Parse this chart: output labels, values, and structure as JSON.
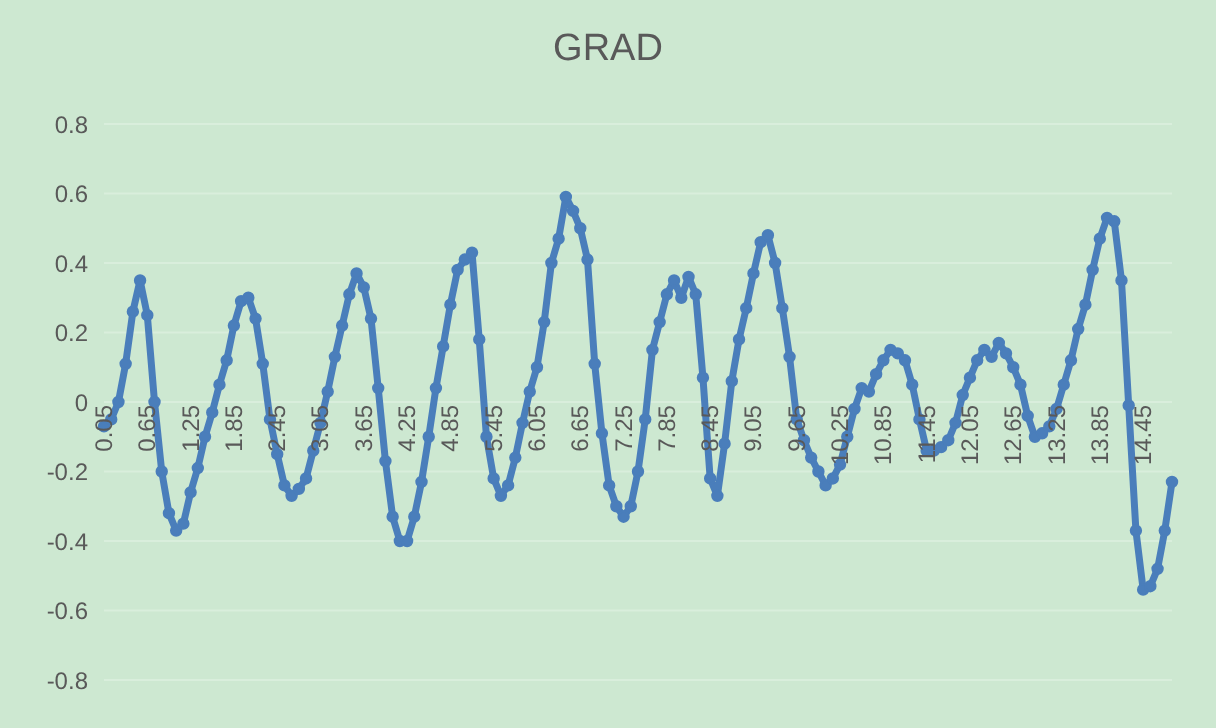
{
  "chart_data": {
    "type": "line",
    "title": "GRAD",
    "categories": [
      "0.05",
      null,
      null,
      null,
      null,
      null,
      "0.65",
      null,
      null,
      null,
      null,
      null,
      "1.25",
      null,
      null,
      null,
      null,
      null,
      "1.85",
      null,
      null,
      null,
      null,
      null,
      "2.45",
      null,
      null,
      null,
      null,
      null,
      "3.05",
      null,
      null,
      null,
      null,
      null,
      "3.65",
      null,
      null,
      null,
      null,
      null,
      "4.25",
      null,
      null,
      null,
      null,
      null,
      "4.85",
      null,
      null,
      null,
      null,
      null,
      "5.45",
      null,
      null,
      null,
      null,
      null,
      "6.05",
      null,
      null,
      null,
      null,
      null,
      "6.65",
      null,
      null,
      null,
      null,
      null,
      "7.25",
      null,
      null,
      null,
      null,
      null,
      "7.85",
      null,
      null,
      null,
      null,
      null,
      "8.45",
      null,
      null,
      null,
      null,
      null,
      "9.05",
      null,
      null,
      null,
      null,
      null,
      "9.65",
      null,
      null,
      null,
      null,
      null,
      "10.25",
      null,
      null,
      null,
      null,
      null,
      "10.85",
      null,
      null,
      null,
      null,
      null,
      "11.45",
      null,
      null,
      null,
      null,
      null,
      "12.05",
      null,
      null,
      null,
      null,
      null,
      "12.65",
      null,
      null,
      null,
      null,
      null,
      "13.25",
      null,
      null,
      null,
      null,
      null,
      "13.85",
      null,
      null,
      null,
      null,
      null,
      "14.45",
      null,
      null,
      null,
      null
    ],
    "series": [
      {
        "color": "#4a7ebb",
        "values": [
          -0.07,
          -0.05,
          0.0,
          0.11,
          0.26,
          0.35,
          0.25,
          0.0,
          -0.2,
          -0.32,
          -0.37,
          -0.35,
          -0.26,
          -0.19,
          -0.1,
          -0.03,
          0.05,
          0.12,
          0.22,
          0.29,
          0.3,
          0.24,
          0.11,
          -0.05,
          -0.15,
          -0.24,
          -0.27,
          -0.25,
          -0.22,
          -0.14,
          -0.06,
          0.03,
          0.13,
          0.22,
          0.31,
          0.37,
          0.33,
          0.24,
          0.04,
          -0.17,
          -0.33,
          -0.4,
          -0.4,
          -0.33,
          -0.23,
          -0.1,
          0.04,
          0.16,
          0.28,
          0.38,
          0.41,
          0.43,
          0.18,
          -0.1,
          -0.22,
          -0.27,
          -0.24,
          -0.16,
          -0.06,
          0.03,
          0.1,
          0.23,
          0.4,
          0.47,
          0.59,
          0.55,
          0.5,
          0.41,
          0.11,
          -0.09,
          -0.24,
          -0.3,
          -0.33,
          -0.3,
          -0.2,
          -0.05,
          0.15,
          0.23,
          0.31,
          0.35,
          0.3,
          0.36,
          0.31,
          0.07,
          -0.22,
          -0.27,
          -0.12,
          0.06,
          0.18,
          0.27,
          0.37,
          0.46,
          0.48,
          0.4,
          0.27,
          0.13,
          -0.05,
          -0.11,
          -0.16,
          -0.2,
          -0.24,
          -0.22,
          -0.18,
          -0.1,
          -0.02,
          0.04,
          0.03,
          0.08,
          0.12,
          0.15,
          0.14,
          0.12,
          0.05,
          -0.05,
          -0.14,
          -0.14,
          -0.13,
          -0.11,
          -0.06,
          0.02,
          0.07,
          0.12,
          0.15,
          0.13,
          0.17,
          0.14,
          0.1,
          0.05,
          -0.04,
          -0.1,
          -0.09,
          -0.07,
          -0.02,
          0.05,
          0.12,
          0.21,
          0.28,
          0.38,
          0.47,
          0.53,
          0.52,
          0.35,
          -0.01,
          -0.37,
          -0.54,
          -0.53,
          -0.48,
          -0.37,
          -0.23
        ]
      }
    ],
    "ylim": [
      -0.8,
      0.8
    ],
    "yticks": [
      -0.8,
      -0.6,
      -0.4,
      -0.2,
      0,
      0.2,
      0.4,
      0.6,
      0.8
    ],
    "grid": "y",
    "marker": "circle",
    "line_style": "solid"
  }
}
